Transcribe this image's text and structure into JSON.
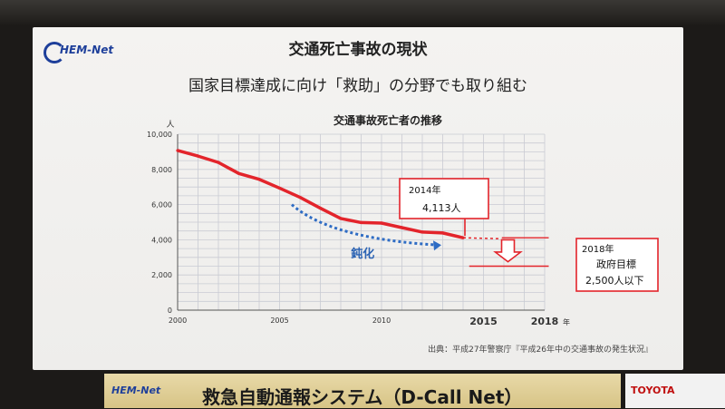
{
  "slide": {
    "logo": "HEM-Net",
    "title": "交通死亡事故の現状",
    "subtitle": "国家目標達成に向け「救助」の分野でも取り組む",
    "credit": "出典：平成27年警察庁『平成26年中の交通事故の発生状況』"
  },
  "banner": {
    "logo": "HEM-Net",
    "title": "救急自動通報システム（D-Call Net）",
    "brand": "TOYOTA"
  },
  "chart_data": {
    "type": "line",
    "title": "交通事故死亡者の推移",
    "ylabel": "人",
    "xlabel": "年",
    "xlim": [
      2000,
      2018
    ],
    "ylim": [
      0,
      10000
    ],
    "y_ticks": [
      "0",
      "2,000",
      "4,000",
      "6,000",
      "8,000",
      "10,000"
    ],
    "x_ticks": [
      "2000",
      "2005",
      "2010",
      "2015",
      "2018"
    ],
    "series": [
      {
        "x": [
          2000,
          2001,
          2002,
          2003,
          2004,
          2005,
          2006,
          2007,
          2008,
          2009,
          2010,
          2011,
          2012,
          2013,
          2014
        ],
        "values": [
          9073,
          8757,
          8396,
          7768,
          7436,
          6937,
          6415,
          5796,
          5209,
          4979,
          4948,
          4691,
          4438,
          4388,
          4113
        ],
        "color": "#e3242b"
      }
    ],
    "target": {
      "x": 2018,
      "value": 2500
    },
    "annotations": {
      "year2014_label": "2014年",
      "year2014_value": "4,113人",
      "target_label": "2018年",
      "target_line1": "政府目標",
      "target_line2": "2,500人以下",
      "trend_label": "鈍化"
    },
    "grid": true
  }
}
